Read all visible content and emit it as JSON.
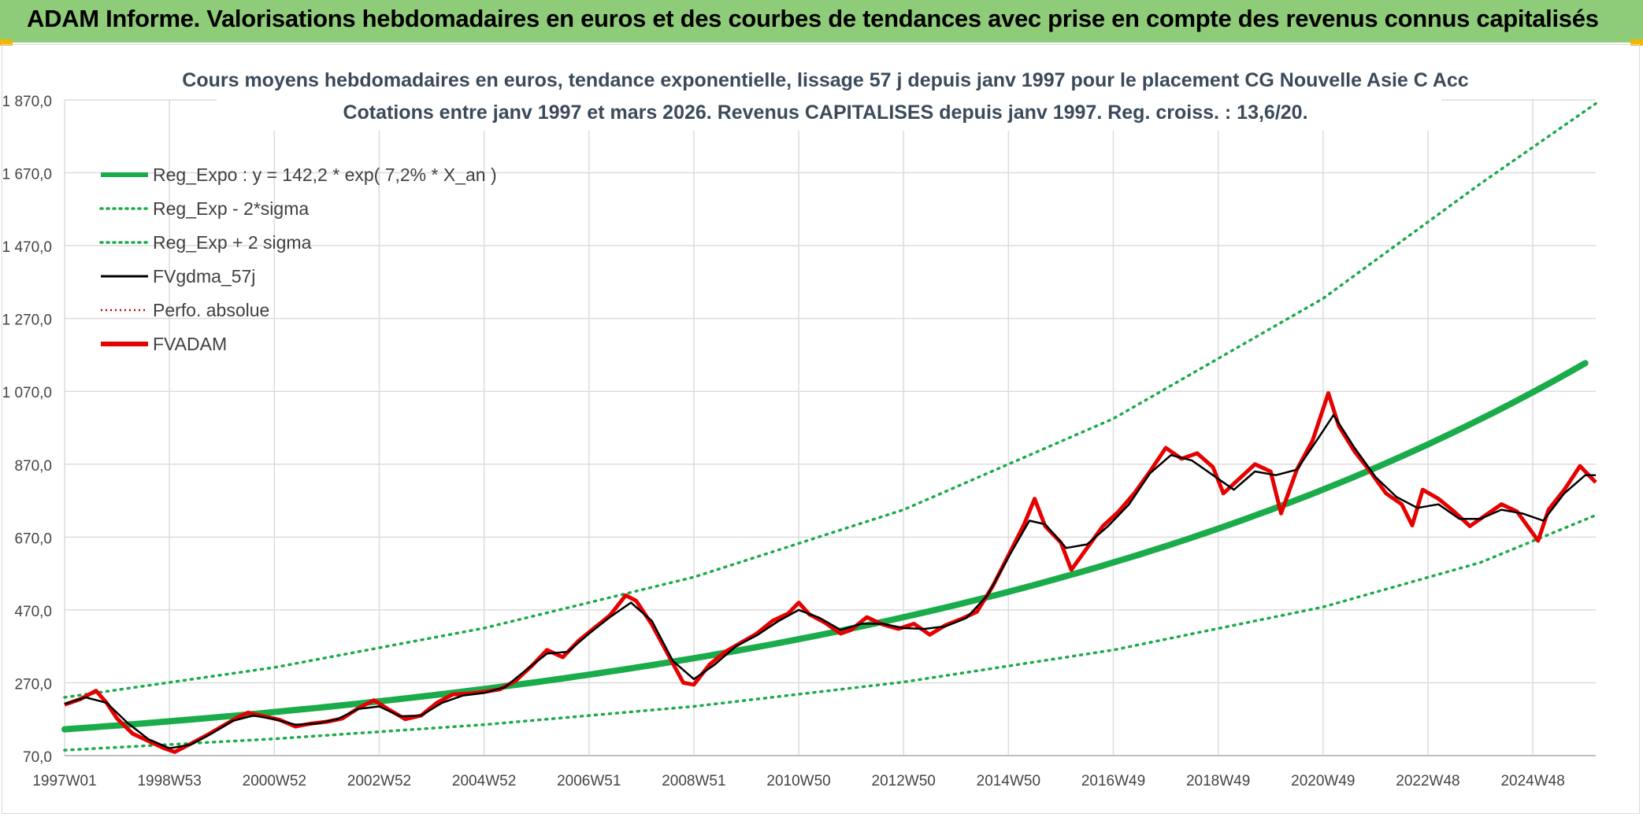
{
  "banner": {
    "title": "ADAM Informe. Valorisations hebdomadaires en euros et des courbes de tendances avec prise en compte des revenus connus capitalisés"
  },
  "colors": {
    "banner_bg": "#8fcc7a",
    "regression": "#1aab4a",
    "smooth": "#000000",
    "price": "#e60000",
    "perf": "#c00000",
    "grid": "#dcdcdc"
  },
  "chart_data": {
    "type": "line",
    "title": "Cours moyens hebdomadaires en euros, tendance exponentielle, lissage 57 j depuis janv 1997 pour le placement CG Nouvelle Asie C Acc",
    "subtitle": "Cotations entre janv 1997 et mars 2026. Revenus CAPITALISES depuis janv 1997. Reg. croiss. : 13,6/20.",
    "xlabel": "",
    "ylabel": "",
    "x_range": [
      1997.0,
      2026.2
    ],
    "ylim": [
      70,
      1870
    ],
    "y_ticks": [
      "70,0",
      "270,0",
      "470,0",
      "670,0",
      "870,0",
      "1 070,0",
      "1 270,0",
      "1 470,0",
      "1 670,0",
      "1 870,0"
    ],
    "y_tick_values": [
      70,
      270,
      470,
      670,
      870,
      1070,
      1270,
      1470,
      1670,
      1870
    ],
    "x_ticks": [
      "1997W01",
      "1998W53",
      "2000W52",
      "2002W52",
      "2004W52",
      "2006W51",
      "2008W51",
      "2010W50",
      "2012W50",
      "2014W50",
      "2016W49",
      "2018W49",
      "2020W49",
      "2022W48",
      "2024W48"
    ],
    "x_tick_values": [
      1997.0,
      1999.0,
      2001.0,
      2003.0,
      2005.0,
      2007.0,
      2009.0,
      2011.0,
      2013.0,
      2015.0,
      2017.0,
      2019.0,
      2021.0,
      2023.0,
      2025.0
    ],
    "grid": true,
    "legend_position": "top-left",
    "legend": [
      {
        "key": "reg",
        "label": "Reg_Expo : y = 142,2 * exp( 7,2% *  X_an )",
        "color": "#1aab4a",
        "style": "solid-thick"
      },
      {
        "key": "low",
        "label": "Reg_Exp - 2*sigma",
        "color": "#1aab4a",
        "style": "dotted"
      },
      {
        "key": "high",
        "label": "Reg_Exp + 2 sigma",
        "color": "#1aab4a",
        "style": "dotted"
      },
      {
        "key": "smooth",
        "label": "FVgdma_57j",
        "color": "#000000",
        "style": "solid"
      },
      {
        "key": "perf",
        "label": "Perfo. absolue",
        "color": "#c00000",
        "style": "dotted-thin"
      },
      {
        "key": "price",
        "label": "FVADAM",
        "color": "#e60000",
        "style": "solid-thick"
      }
    ],
    "regression": {
      "a": 142.2,
      "rate": 0.072,
      "x0": 1997.0,
      "x1": 2026.2
    },
    "lower_band": [
      [
        1997.0,
        85
      ],
      [
        2001,
        116
      ],
      [
        2005,
        155
      ],
      [
        2009,
        205
      ],
      [
        2013,
        272
      ],
      [
        2017,
        360
      ],
      [
        2021,
        478
      ],
      [
        2024,
        600
      ],
      [
        2026.2,
        730
      ]
    ],
    "upper_band": [
      [
        1997.0,
        230
      ],
      [
        2001,
        312
      ],
      [
        2005,
        420
      ],
      [
        2009,
        560
      ],
      [
        2013,
        745
      ],
      [
        2017,
        995
      ],
      [
        2021,
        1325
      ],
      [
        2024,
        1640
      ],
      [
        2026.2,
        1860
      ]
    ],
    "series": [
      {
        "name": "FVADAM",
        "points": [
          [
            1997.0,
            210
          ],
          [
            1997.3,
            225
          ],
          [
            1997.6,
            248
          ],
          [
            1997.8,
            215
          ],
          [
            1998.0,
            172
          ],
          [
            1998.3,
            130
          ],
          [
            1998.6,
            110
          ],
          [
            1998.9,
            90
          ],
          [
            1999.1,
            80
          ],
          [
            1999.4,
            102
          ],
          [
            1999.7,
            125
          ],
          [
            2000.0,
            150
          ],
          [
            2000.3,
            175
          ],
          [
            2000.5,
            188
          ],
          [
            2000.8,
            178
          ],
          [
            2001.1,
            168
          ],
          [
            2001.4,
            150
          ],
          [
            2001.7,
            158
          ],
          [
            2002.0,
            163
          ],
          [
            2002.3,
            172
          ],
          [
            2002.6,
            200
          ],
          [
            2002.9,
            222
          ],
          [
            2003.2,
            195
          ],
          [
            2003.5,
            170
          ],
          [
            2003.8,
            180
          ],
          [
            2004.1,
            215
          ],
          [
            2004.4,
            238
          ],
          [
            2004.7,
            240
          ],
          [
            2005.0,
            245
          ],
          [
            2005.3,
            252
          ],
          [
            2005.6,
            275
          ],
          [
            2005.9,
            315
          ],
          [
            2006.2,
            360
          ],
          [
            2006.5,
            340
          ],
          [
            2006.8,
            385
          ],
          [
            2007.1,
            420
          ],
          [
            2007.4,
            455
          ],
          [
            2007.7,
            510
          ],
          [
            2007.9,
            495
          ],
          [
            2008.2,
            430
          ],
          [
            2008.5,
            350
          ],
          [
            2008.8,
            270
          ],
          [
            2009.0,
            265
          ],
          [
            2009.3,
            320
          ],
          [
            2009.6,
            355
          ],
          [
            2009.9,
            380
          ],
          [
            2010.2,
            405
          ],
          [
            2010.5,
            440
          ],
          [
            2010.8,
            460
          ],
          [
            2011.0,
            490
          ],
          [
            2011.2,
            458
          ],
          [
            2011.5,
            435
          ],
          [
            2011.8,
            405
          ],
          [
            2012.0,
            415
          ],
          [
            2012.3,
            450
          ],
          [
            2012.6,
            430
          ],
          [
            2012.9,
            418
          ],
          [
            2013.2,
            432
          ],
          [
            2013.5,
            402
          ],
          [
            2013.8,
            428
          ],
          [
            2014.1,
            445
          ],
          [
            2014.4,
            465
          ],
          [
            2014.7,
            535
          ],
          [
            2015.0,
            620
          ],
          [
            2015.3,
            705
          ],
          [
            2015.5,
            775
          ],
          [
            2015.7,
            700
          ],
          [
            2016.0,
            655
          ],
          [
            2016.2,
            580
          ],
          [
            2016.5,
            640
          ],
          [
            2016.8,
            700
          ],
          [
            2017.1,
            740
          ],
          [
            2017.4,
            790
          ],
          [
            2017.7,
            850
          ],
          [
            2018.0,
            915
          ],
          [
            2018.3,
            885
          ],
          [
            2018.6,
            900
          ],
          [
            2018.9,
            862
          ],
          [
            2019.1,
            790
          ],
          [
            2019.4,
            830
          ],
          [
            2019.7,
            870
          ],
          [
            2020.0,
            850
          ],
          [
            2020.2,
            735
          ],
          [
            2020.5,
            855
          ],
          [
            2020.8,
            935
          ],
          [
            2021.1,
            1065
          ],
          [
            2021.3,
            975
          ],
          [
            2021.6,
            905
          ],
          [
            2021.9,
            850
          ],
          [
            2022.2,
            790
          ],
          [
            2022.5,
            760
          ],
          [
            2022.7,
            702
          ],
          [
            2022.9,
            800
          ],
          [
            2023.2,
            775
          ],
          [
            2023.5,
            740
          ],
          [
            2023.8,
            700
          ],
          [
            2024.1,
            730
          ],
          [
            2024.4,
            760
          ],
          [
            2024.7,
            740
          ],
          [
            2024.9,
            700
          ],
          [
            2025.1,
            660
          ],
          [
            2025.3,
            745
          ],
          [
            2025.6,
            800
          ],
          [
            2025.9,
            865
          ],
          [
            2026.2,
            820
          ]
        ]
      },
      {
        "name": "FVgdma_57j",
        "points": [
          [
            1997.0,
            212
          ],
          [
            1997.4,
            230
          ],
          [
            1997.8,
            215
          ],
          [
            1998.2,
            160
          ],
          [
            1998.6,
            115
          ],
          [
            1999.0,
            90
          ],
          [
            1999.4,
            100
          ],
          [
            1999.8,
            130
          ],
          [
            2000.2,
            165
          ],
          [
            2000.6,
            180
          ],
          [
            2001.0,
            170
          ],
          [
            2001.4,
            155
          ],
          [
            2001.8,
            158
          ],
          [
            2002.2,
            170
          ],
          [
            2002.6,
            198
          ],
          [
            2003.0,
            205
          ],
          [
            2003.4,
            178
          ],
          [
            2003.8,
            180
          ],
          [
            2004.2,
            215
          ],
          [
            2004.6,
            235
          ],
          [
            2005.0,
            242
          ],
          [
            2005.4,
            258
          ],
          [
            2005.8,
            305
          ],
          [
            2006.2,
            350
          ],
          [
            2006.6,
            355
          ],
          [
            2007.0,
            405
          ],
          [
            2007.4,
            450
          ],
          [
            2007.8,
            490
          ],
          [
            2008.2,
            440
          ],
          [
            2008.6,
            330
          ],
          [
            2009.0,
            280
          ],
          [
            2009.4,
            320
          ],
          [
            2009.8,
            370
          ],
          [
            2010.2,
            400
          ],
          [
            2010.6,
            438
          ],
          [
            2011.0,
            470
          ],
          [
            2011.4,
            448
          ],
          [
            2011.8,
            415
          ],
          [
            2012.2,
            432
          ],
          [
            2012.6,
            432
          ],
          [
            2013.0,
            420
          ],
          [
            2013.4,
            418
          ],
          [
            2013.8,
            425
          ],
          [
            2014.2,
            448
          ],
          [
            2014.6,
            510
          ],
          [
            2015.0,
            615
          ],
          [
            2015.4,
            715
          ],
          [
            2015.7,
            705
          ],
          [
            2016.1,
            640
          ],
          [
            2016.5,
            650
          ],
          [
            2016.9,
            700
          ],
          [
            2017.3,
            760
          ],
          [
            2017.7,
            845
          ],
          [
            2018.1,
            895
          ],
          [
            2018.5,
            880
          ],
          [
            2018.9,
            840
          ],
          [
            2019.3,
            800
          ],
          [
            2019.7,
            850
          ],
          [
            2020.1,
            840
          ],
          [
            2020.5,
            855
          ],
          [
            2020.9,
            940
          ],
          [
            2021.2,
            1005
          ],
          [
            2021.6,
            915
          ],
          [
            2022.0,
            835
          ],
          [
            2022.4,
            780
          ],
          [
            2022.8,
            750
          ],
          [
            2023.2,
            760
          ],
          [
            2023.6,
            720
          ],
          [
            2024.0,
            720
          ],
          [
            2024.4,
            745
          ],
          [
            2024.8,
            735
          ],
          [
            2025.2,
            715
          ],
          [
            2025.6,
            790
          ],
          [
            2026.0,
            840
          ],
          [
            2026.2,
            840
          ]
        ]
      }
    ]
  }
}
